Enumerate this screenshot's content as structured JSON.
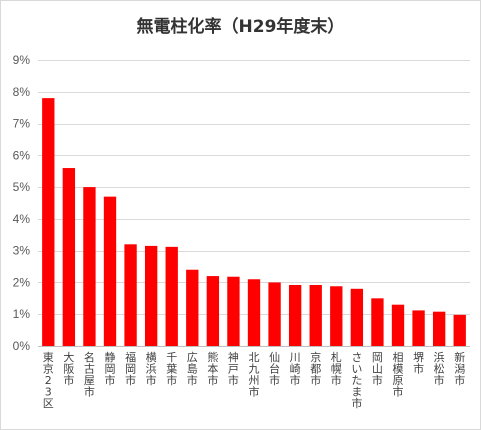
{
  "chart_data": {
    "type": "bar",
    "title": "無電柱化率（H29年度末）",
    "xlabel": "",
    "ylabel": "",
    "ylim": [
      0,
      9
    ],
    "yticks": [
      0,
      1,
      2,
      3,
      4,
      5,
      6,
      7,
      8,
      9
    ],
    "ytick_labels": [
      "0%",
      "1%",
      "2%",
      "3%",
      "4%",
      "5%",
      "6%",
      "7%",
      "8%",
      "9%"
    ],
    "grid": true,
    "legend": "none",
    "bar_color": "#ff0000",
    "categories": [
      "東京23区",
      "大阪市",
      "名古屋市",
      "静岡市",
      "福岡市",
      "横浜市",
      "千葉市",
      "広島市",
      "熊本市",
      "神戸市",
      "北九州市",
      "仙台市",
      "川崎市",
      "京都市",
      "札幌市",
      "さいたま市",
      "岡山市",
      "相模原市",
      "堺市",
      "浜松市",
      "新潟市"
    ],
    "values": [
      7.8,
      5.6,
      5.0,
      4.7,
      3.2,
      3.15,
      3.12,
      2.4,
      2.2,
      2.18,
      2.1,
      2.0,
      1.92,
      1.92,
      1.88,
      1.8,
      1.5,
      1.3,
      1.12,
      1.08,
      0.98
    ]
  }
}
